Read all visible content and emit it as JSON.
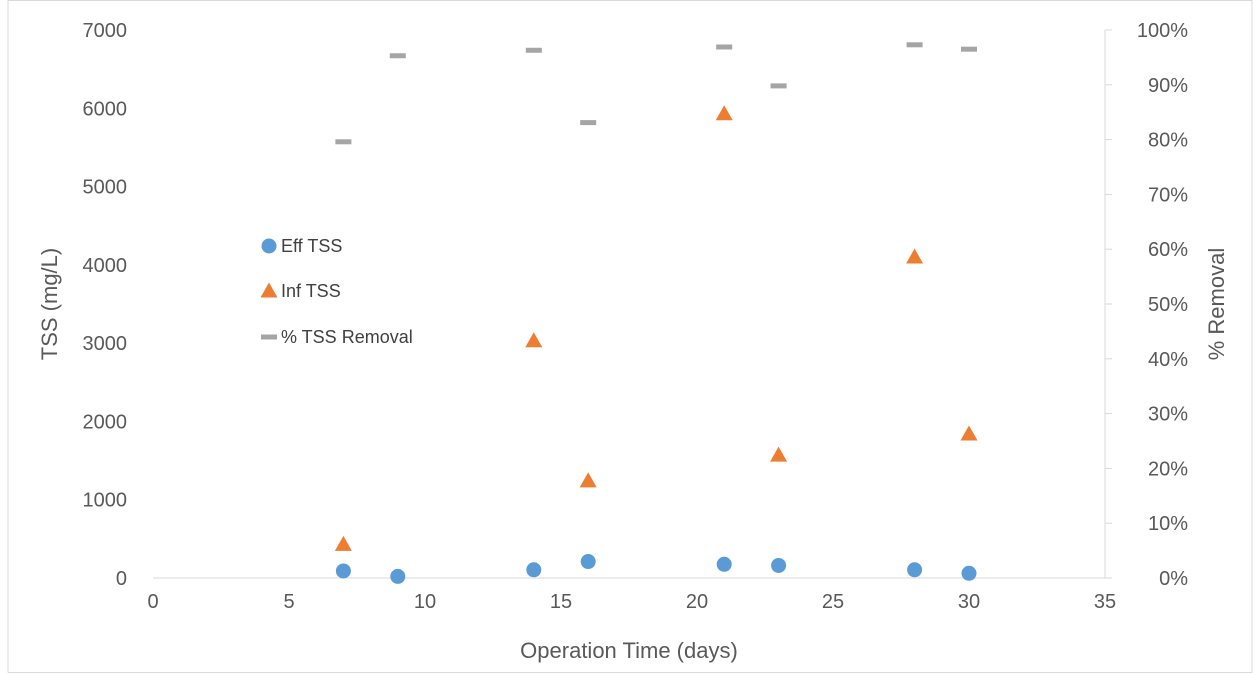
{
  "chart_data": {
    "type": "scatter",
    "title": "",
    "xlabel": "Operation Time (days)",
    "ylabel": "TSS (mg/L)",
    "y2label": "% Removal",
    "xlim": [
      0,
      35
    ],
    "ylim": [
      0,
      7000
    ],
    "y2lim": [
      0,
      1
    ],
    "x_ticks": [
      "0",
      "5",
      "10",
      "15",
      "20",
      "25",
      "30",
      "35"
    ],
    "y_ticks": [
      "0",
      "1000",
      "2000",
      "3000",
      "4000",
      "5000",
      "6000",
      "7000"
    ],
    "y2_ticks": [
      "0%",
      "10%",
      "20%",
      "30%",
      "40%",
      "50%",
      "60%",
      "70%",
      "80%",
      "90%",
      "100%"
    ],
    "grid": false,
    "legend_position": "center-left",
    "series": [
      {
        "name": "Eff TSS",
        "axis": "left",
        "marker": "circle",
        "color": "#5B9BD5",
        "points": [
          [
            7,
            90
          ],
          [
            9,
            20
          ],
          [
            14,
            105
          ],
          [
            16,
            210
          ],
          [
            21,
            175
          ],
          [
            23,
            160
          ],
          [
            28,
            105
          ],
          [
            30,
            60
          ]
        ]
      },
      {
        "name": "Inf TSS",
        "axis": "left",
        "marker": "triangle",
        "color": "#ED7D31",
        "points": [
          [
            7,
            430
          ],
          [
            14,
            3030
          ],
          [
            16,
            1240
          ],
          [
            21,
            5930
          ],
          [
            23,
            1570
          ],
          [
            28,
            4100
          ],
          [
            30,
            1840
          ]
        ]
      },
      {
        "name": "% TSS Removal",
        "axis": "right",
        "marker": "dash",
        "color": "#A5A5A5",
        "points": [
          [
            7,
            0.796
          ],
          [
            9,
            0.953
          ],
          [
            14,
            0.963
          ],
          [
            16,
            0.831
          ],
          [
            21,
            0.969
          ],
          [
            23,
            0.898
          ],
          [
            28,
            0.973
          ],
          [
            30,
            0.965
          ]
        ]
      }
    ]
  }
}
